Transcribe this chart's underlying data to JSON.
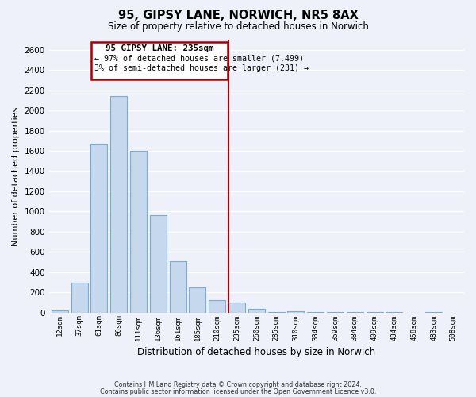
{
  "title": "95, GIPSY LANE, NORWICH, NR5 8AX",
  "subtitle": "Size of property relative to detached houses in Norwich",
  "xlabel": "Distribution of detached houses by size in Norwich",
  "ylabel": "Number of detached properties",
  "bar_labels": [
    "12sqm",
    "37sqm",
    "61sqm",
    "86sqm",
    "111sqm",
    "136sqm",
    "161sqm",
    "185sqm",
    "210sqm",
    "235sqm",
    "260sqm",
    "285sqm",
    "310sqm",
    "334sqm",
    "359sqm",
    "384sqm",
    "409sqm",
    "434sqm",
    "458sqm",
    "483sqm",
    "508sqm"
  ],
  "bar_values": [
    20,
    295,
    1670,
    2140,
    1600,
    965,
    505,
    250,
    120,
    100,
    35,
    5,
    10,
    5,
    5,
    5,
    5,
    5,
    0,
    5,
    0
  ],
  "bar_color": "#c5d8ed",
  "bar_edgecolor": "#7aadd4",
  "vline_color": "#aa0000",
  "annotation_title": "95 GIPSY LANE: 235sqm",
  "annotation_line1": "← 97% of detached houses are smaller (7,499)",
  "annotation_line2": "3% of semi-detached houses are larger (231) →",
  "annotation_box_edgecolor": "#aa0000",
  "ylim": [
    0,
    2700
  ],
  "yticks": [
    0,
    200,
    400,
    600,
    800,
    1000,
    1200,
    1400,
    1600,
    1800,
    2000,
    2200,
    2400,
    2600
  ],
  "background_color": "#eef1f9",
  "grid_color": "#ffffff",
  "footer1": "Contains HM Land Registry data © Crown copyright and database right 2024.",
  "footer2": "Contains public sector information licensed under the Open Government Licence v3.0."
}
